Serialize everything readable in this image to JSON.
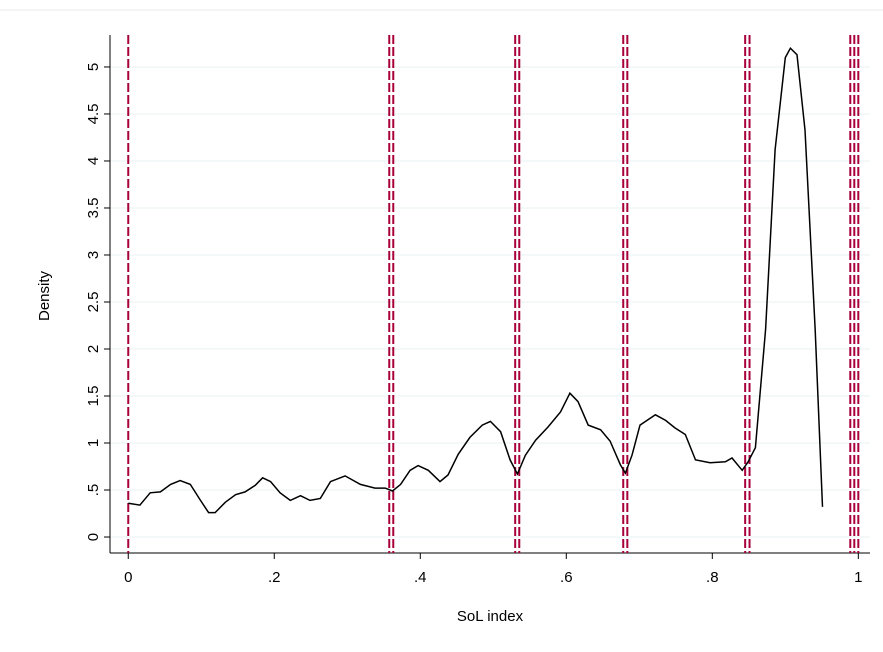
{
  "chart_data": {
    "type": "line",
    "xlabel": "SoL index",
    "ylabel": "Density",
    "xlim": [
      -0.025,
      1.016
    ],
    "ylim": [
      -0.17,
      5.34
    ],
    "xticks": [
      0,
      {
        "value": 0.2,
        "label": ".2"
      },
      {
        "value": 0.4,
        "label": ".4"
      },
      {
        "value": 0.6,
        "label": ".6"
      },
      {
        "value": 0.8,
        "label": ".8"
      },
      1
    ],
    "yticks": [
      0,
      {
        "value": 0.5,
        "label": ".5"
      },
      1,
      1.5,
      2,
      2.5,
      3,
      3.5,
      4,
      4.5,
      5
    ],
    "grid": true,
    "reference_lines": {
      "color": "#a8003b",
      "x": [
        0,
        0.3575,
        0.363,
        0.53,
        0.5356,
        0.678,
        0.6836,
        0.845,
        0.851,
        0.989,
        0.9945,
        1.0
      ]
    },
    "series": [
      {
        "color": "#000000",
        "x": [
          0.0,
          0.016,
          0.03,
          0.044,
          0.058,
          0.071,
          0.085,
          0.099,
          0.11,
          0.119,
          0.133,
          0.147,
          0.16,
          0.174,
          0.184,
          0.195,
          0.208,
          0.222,
          0.236,
          0.249,
          0.263,
          0.277,
          0.297,
          0.318,
          0.338,
          0.352,
          0.362,
          0.373,
          0.386,
          0.397,
          0.411,
          0.427,
          0.438,
          0.452,
          0.468,
          0.485,
          0.496,
          0.51,
          0.523,
          0.533,
          0.544,
          0.558,
          0.575,
          0.592,
          0.605,
          0.616,
          0.63,
          0.647,
          0.66,
          0.674,
          0.681,
          0.69,
          0.701,
          0.722,
          0.736,
          0.749,
          0.763,
          0.777,
          0.797,
          0.818,
          0.827,
          0.841,
          0.849,
          0.859,
          0.873,
          0.886,
          0.9,
          0.907,
          0.916,
          0.927,
          0.941,
          0.951
        ],
        "values": [
          0.36,
          0.34,
          0.47,
          0.48,
          0.56,
          0.6,
          0.56,
          0.39,
          0.26,
          0.26,
          0.37,
          0.45,
          0.48,
          0.55,
          0.63,
          0.59,
          0.47,
          0.39,
          0.44,
          0.39,
          0.41,
          0.59,
          0.65,
          0.56,
          0.52,
          0.52,
          0.49,
          0.56,
          0.71,
          0.76,
          0.71,
          0.59,
          0.66,
          0.88,
          1.06,
          1.19,
          1.23,
          1.12,
          0.82,
          0.67,
          0.87,
          1.03,
          1.17,
          1.33,
          1.53,
          1.44,
          1.19,
          1.14,
          1.02,
          0.77,
          0.68,
          0.87,
          1.19,
          1.3,
          1.24,
          1.16,
          1.09,
          0.82,
          0.79,
          0.8,
          0.84,
          0.71,
          0.8,
          0.95,
          2.21,
          4.12,
          5.1,
          5.2,
          5.13,
          4.33,
          2.2,
          0.32
        ]
      }
    ]
  }
}
